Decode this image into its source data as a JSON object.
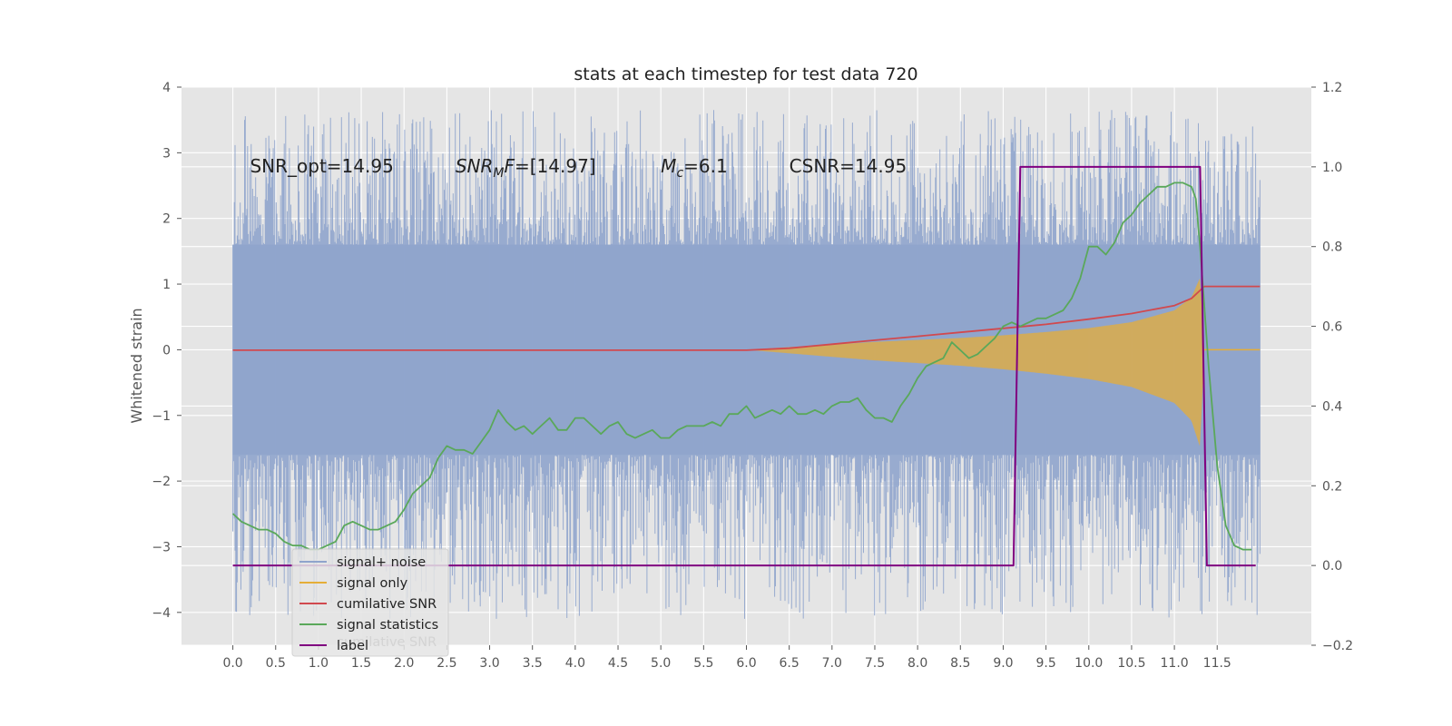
{
  "chart_data": {
    "type": "line",
    "title": "stats at each timestep for test data 720",
    "ylabel": "Whitened strain",
    "ylabel_right": "",
    "xlim": [
      -0.6,
      12.6
    ],
    "ylim": [
      -4.5,
      4.0
    ],
    "ylim_right": [
      -0.2,
      1.2
    ],
    "x_ticks": [
      0.0,
      0.5,
      1.0,
      1.5,
      2.0,
      2.5,
      3.0,
      3.5,
      4.0,
      4.5,
      5.0,
      5.5,
      6.0,
      6.5,
      7.0,
      7.5,
      8.0,
      8.5,
      9.0,
      9.5,
      10.0,
      10.5,
      11.0,
      11.5
    ],
    "x_tick_labels": [
      "0.0",
      "0.5",
      "1.0",
      "1.5",
      "2.0",
      "2.5",
      "3.0",
      "3.5",
      "4.0",
      "4.5",
      "5.0",
      "5.5",
      "6.0",
      "6.5",
      "7.0",
      "7.5",
      "8.0",
      "8.5",
      "9.0",
      "9.5",
      "10.0",
      "10.5",
      "11.0",
      "11.5"
    ],
    "y_ticks": [
      -4,
      -3,
      -2,
      -1,
      0,
      1,
      2,
      3,
      4
    ],
    "y_tick_labels": [
      "−4",
      "−3",
      "−2",
      "−1",
      "0",
      "1",
      "2",
      "3",
      "4"
    ],
    "y_right_ticks": [
      -0.2,
      0.0,
      0.2,
      0.4,
      0.6,
      0.8,
      1.0,
      1.2
    ],
    "y_right_tick_labels": [
      "−0.2",
      "0.0",
      "0.2",
      "0.4",
      "0.6",
      "0.8",
      "1.0",
      "1.2"
    ],
    "grid": true,
    "legend_position": "lower-left",
    "annotations": [
      {
        "id": "snr-opt",
        "x": 0.2,
        "y": 2.8,
        "parts": [
          {
            "text": "SNR_opt=14.95",
            "italic": false
          }
        ]
      },
      {
        "id": "snr-mf",
        "x": 2.6,
        "y": 2.8,
        "parts": [
          {
            "text": "SNR",
            "italic": true
          },
          {
            "text": "M",
            "italic": true,
            "sub": true
          },
          {
            "text": "F",
            "italic": true
          },
          {
            "text": "=[14.97]",
            "italic": false
          }
        ]
      },
      {
        "id": "mc",
        "x": 5.0,
        "y": 2.8,
        "parts": [
          {
            "text": "M",
            "italic": true
          },
          {
            "text": "c",
            "italic": true,
            "sub": true
          },
          {
            "text": "=6.1",
            "italic": false
          }
        ]
      },
      {
        "id": "csnr",
        "x": 6.5,
        "y": 2.8,
        "parts": [
          {
            "text": "CSNR=14.95",
            "italic": false
          }
        ]
      }
    ],
    "series": [
      {
        "name": "signal+ noise",
        "color": "#8fa4cc",
        "axis": "left",
        "kind": "noise-band",
        "x_range": [
          0.0,
          12.0
        ],
        "typical_band": [
          -1.6,
          1.6
        ],
        "extremes": [
          -4.1,
          3.65
        ]
      },
      {
        "name": "signal only",
        "color": "#e5ae38",
        "axis": "left",
        "kind": "chirp",
        "x": [
          6.0,
          6.5,
          7.0,
          7.5,
          8.0,
          8.5,
          9.0,
          9.5,
          10.0,
          10.5,
          11.0,
          11.2,
          11.3,
          11.35
        ],
        "envelope": [
          0.0,
          0.04,
          0.08,
          0.12,
          0.15,
          0.18,
          0.22,
          0.27,
          0.33,
          0.42,
          0.6,
          0.8,
          1.1,
          0.0
        ]
      },
      {
        "name": "cumilative SNR",
        "color": "#d1494e",
        "axis": "right",
        "x": [
          0.0,
          1.0,
          2.0,
          3.0,
          4.0,
          5.0,
          6.0,
          6.5,
          7.0,
          7.5,
          8.0,
          8.5,
          9.0,
          9.5,
          10.0,
          10.5,
          11.0,
          11.2,
          11.3,
          11.35,
          12.0
        ],
        "values": [
          0.54,
          0.54,
          0.54,
          0.54,
          0.54,
          0.54,
          0.54,
          0.545,
          0.555,
          0.565,
          0.575,
          0.585,
          0.595,
          0.605,
          0.618,
          0.632,
          0.652,
          0.67,
          0.69,
          0.7,
          0.7
        ]
      },
      {
        "name": "signal statistics",
        "color": "#5aa85a",
        "axis": "right",
        "x": [
          0.0,
          0.1,
          0.2,
          0.3,
          0.4,
          0.5,
          0.6,
          0.7,
          0.8,
          0.9,
          1.0,
          1.1,
          1.2,
          1.3,
          1.4,
          1.5,
          1.6,
          1.7,
          1.8,
          1.9,
          2.0,
          2.1,
          2.2,
          2.3,
          2.4,
          2.5,
          2.6,
          2.7,
          2.8,
          2.9,
          3.0,
          3.1,
          3.2,
          3.3,
          3.4,
          3.5,
          3.6,
          3.7,
          3.8,
          3.9,
          4.0,
          4.1,
          4.2,
          4.3,
          4.4,
          4.5,
          4.6,
          4.7,
          4.8,
          4.9,
          5.0,
          5.1,
          5.2,
          5.3,
          5.4,
          5.5,
          5.6,
          5.7,
          5.8,
          5.9,
          6.0,
          6.1,
          6.2,
          6.3,
          6.4,
          6.5,
          6.6,
          6.7,
          6.8,
          6.9,
          7.0,
          7.1,
          7.2,
          7.3,
          7.4,
          7.5,
          7.6,
          7.7,
          7.8,
          7.9,
          8.0,
          8.1,
          8.2,
          8.3,
          8.4,
          8.5,
          8.6,
          8.7,
          8.8,
          8.9,
          9.0,
          9.1,
          9.2,
          9.3,
          9.4,
          9.5,
          9.6,
          9.7,
          9.8,
          9.9,
          10.0,
          10.1,
          10.2,
          10.3,
          10.4,
          10.5,
          10.6,
          10.7,
          10.8,
          10.9,
          11.0,
          11.1,
          11.2,
          11.25,
          11.3,
          11.4,
          11.5,
          11.6,
          11.7,
          11.8,
          11.9
        ],
        "values": [
          0.13,
          0.11,
          0.1,
          0.09,
          0.09,
          0.08,
          0.06,
          0.05,
          0.05,
          0.04,
          0.04,
          0.05,
          0.06,
          0.1,
          0.11,
          0.1,
          0.09,
          0.09,
          0.1,
          0.11,
          0.14,
          0.18,
          0.2,
          0.22,
          0.27,
          0.3,
          0.29,
          0.29,
          0.28,
          0.31,
          0.34,
          0.39,
          0.36,
          0.34,
          0.35,
          0.33,
          0.35,
          0.37,
          0.34,
          0.34,
          0.37,
          0.37,
          0.35,
          0.33,
          0.35,
          0.36,
          0.33,
          0.32,
          0.33,
          0.34,
          0.32,
          0.32,
          0.34,
          0.35,
          0.35,
          0.35,
          0.36,
          0.35,
          0.38,
          0.38,
          0.4,
          0.37,
          0.38,
          0.39,
          0.38,
          0.4,
          0.38,
          0.38,
          0.39,
          0.38,
          0.4,
          0.41,
          0.41,
          0.42,
          0.39,
          0.37,
          0.37,
          0.36,
          0.4,
          0.43,
          0.47,
          0.5,
          0.51,
          0.52,
          0.56,
          0.54,
          0.52,
          0.53,
          0.55,
          0.57,
          0.6,
          0.61,
          0.6,
          0.61,
          0.62,
          0.62,
          0.63,
          0.64,
          0.67,
          0.72,
          0.8,
          0.8,
          0.78,
          0.81,
          0.86,
          0.88,
          0.91,
          0.93,
          0.95,
          0.95,
          0.96,
          0.96,
          0.95,
          0.92,
          0.8,
          0.5,
          0.25,
          0.1,
          0.05,
          0.04,
          0.04
        ]
      },
      {
        "name": "label",
        "color": "#800080",
        "axis": "right",
        "x": [
          0.0,
          9.12,
          9.2,
          11.3,
          11.38,
          11.95
        ],
        "values": [
          0.0,
          0.0,
          1.0,
          1.0,
          0.0,
          0.0
        ]
      }
    ],
    "legend_ghost_text": "cumilative SNR"
  }
}
